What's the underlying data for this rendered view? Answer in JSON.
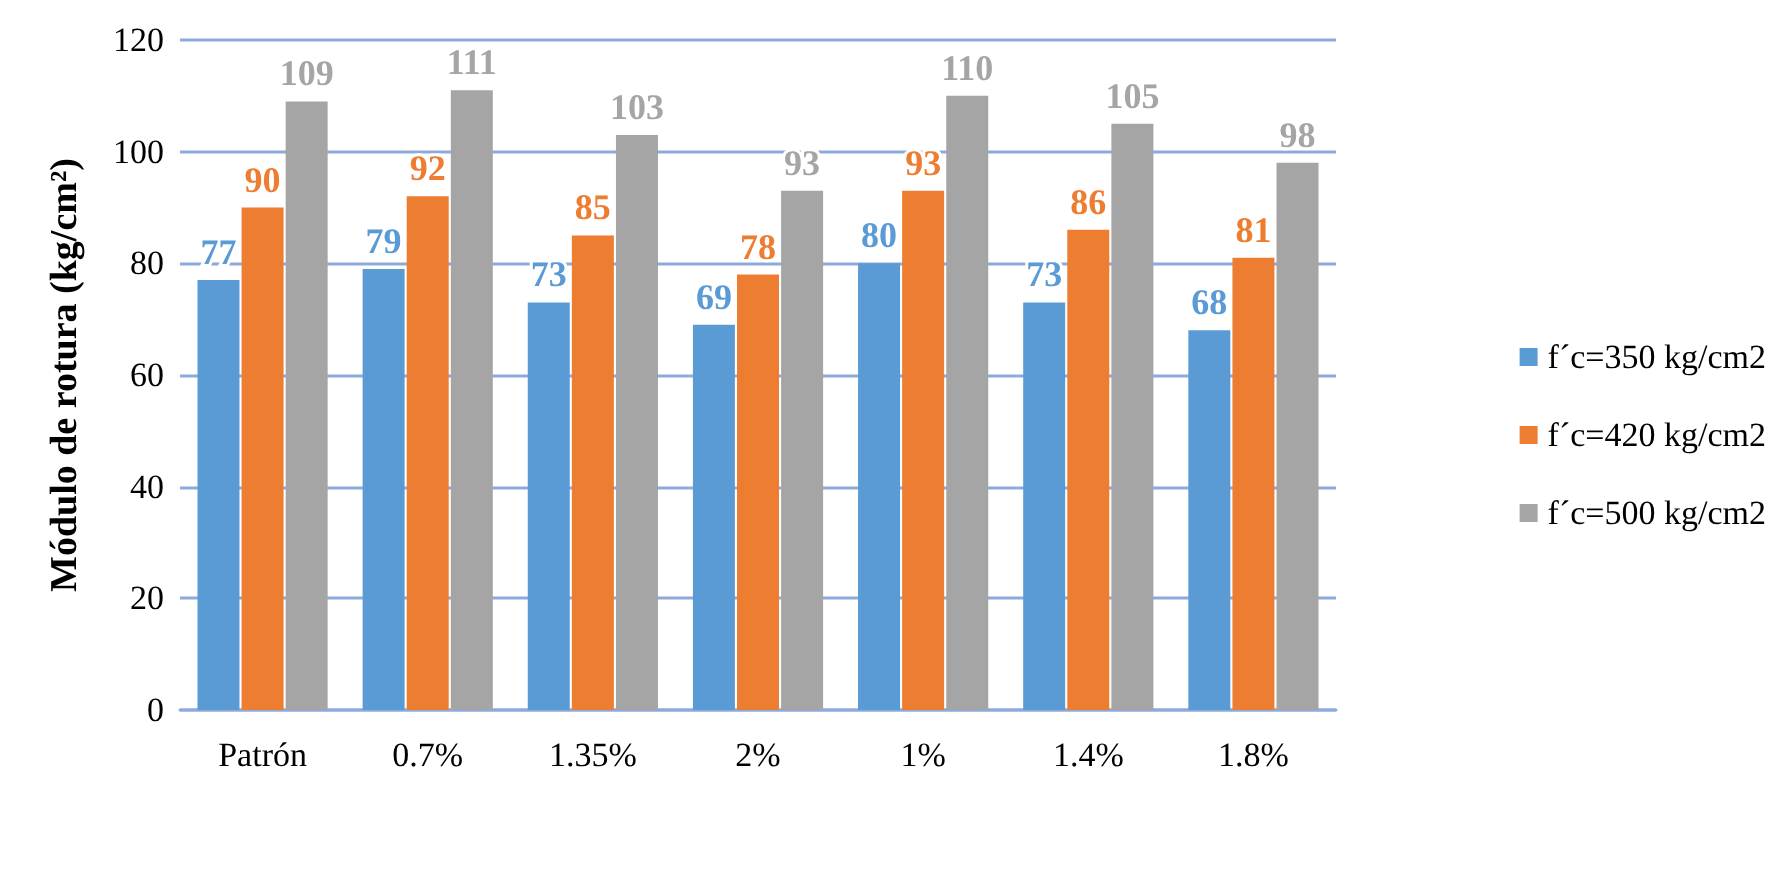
{
  "chart_data": {
    "type": "bar",
    "ylabel": "Módulo de rotura (kg/cm²)",
    "categories": [
      "Patrón",
      "0.7%",
      "1.35%",
      "2%",
      "1%",
      "1.4%",
      "1.8%"
    ],
    "series": [
      {
        "name": "f´c=350 kg/cm2",
        "color": "#5b9bd5",
        "values": [
          77,
          79,
          73,
          69,
          80,
          73,
          68
        ]
      },
      {
        "name": "f´c=420 kg/cm2",
        "color": "#ed7d31",
        "values": [
          90,
          92,
          85,
          78,
          93,
          86,
          81
        ]
      },
      {
        "name": "f´c=500 kg/cm2",
        "color": "#a5a5a5",
        "values": [
          109,
          111,
          103,
          93,
          110,
          105,
          98
        ]
      }
    ],
    "ylim": [
      0,
      120
    ],
    "yticks": [
      0,
      20,
      40,
      60,
      80,
      100,
      120
    ],
    "grid": "y",
    "legend": "right",
    "data_labels": true
  }
}
